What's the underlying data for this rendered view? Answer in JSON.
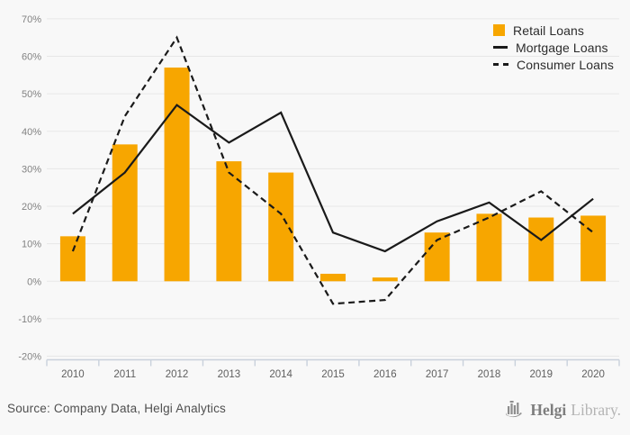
{
  "chart_data": {
    "type": "combo-bar-line",
    "categories": [
      "2010",
      "2011",
      "2012",
      "2013",
      "2014",
      "2015",
      "2016",
      "2017",
      "2018",
      "2019",
      "2020"
    ],
    "series": [
      {
        "name": "Retail Loans",
        "type": "bar",
        "style": "solid",
        "color": "#F7A600",
        "values": [
          12,
          36.5,
          57,
          32,
          29,
          2,
          1,
          13,
          18,
          17,
          17.5
        ]
      },
      {
        "name": "Mortgage Loans",
        "type": "line",
        "style": "solid",
        "color": "#1a1a1a",
        "values": [
          18,
          29,
          47,
          37,
          45,
          13,
          8,
          16,
          21,
          11,
          22
        ]
      },
      {
        "name": "Consumer Loans",
        "type": "line",
        "style": "dashed",
        "color": "#1a1a1a",
        "values": [
          8,
          44,
          65,
          29,
          18,
          -6,
          -5,
          11,
          17,
          24,
          13
        ]
      }
    ],
    "title": "",
    "xlabel": "",
    "ylabel": "",
    "ylim": [
      -20,
      70
    ],
    "ytick_step": 10,
    "ytick_labels": [
      "70%",
      "60%",
      "50%",
      "40%",
      "30%",
      "20%",
      "10%",
      "0%",
      "-10%",
      "-20%"
    ],
    "grid": "horizontal",
    "legend_position": "top-right"
  },
  "colors": {
    "background": "#f8f8f8",
    "gridline": "#e7e7e7",
    "axis_line": "#c9d1dc",
    "y_label": "#828282",
    "x_label": "#5f5f5f",
    "bar_accent": "#F7A600",
    "line_black": "#1a1a1a"
  },
  "footer": {
    "source": "Source: Company Data, Helgi Analytics",
    "logo": {
      "brand_primary": "Helgi",
      "brand_secondary": "Library."
    }
  }
}
